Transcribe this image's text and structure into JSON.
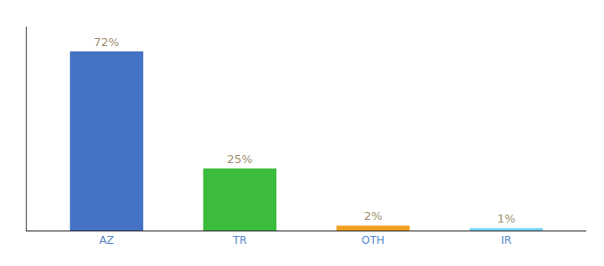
{
  "chart_data": {
    "type": "bar",
    "categories": [
      "AZ",
      "TR",
      "OTH",
      "IR"
    ],
    "values": [
      72,
      25,
      2,
      1
    ],
    "value_labels": [
      "72%",
      "25%",
      "2%",
      "1%"
    ],
    "colors": [
      "#4472c4",
      "#3cbc3c",
      "#f0a020",
      "#74d4f4"
    ],
    "ylim": [
      0,
      82
    ],
    "yticks": [],
    "tick_labels": "x",
    "grid": false
  }
}
